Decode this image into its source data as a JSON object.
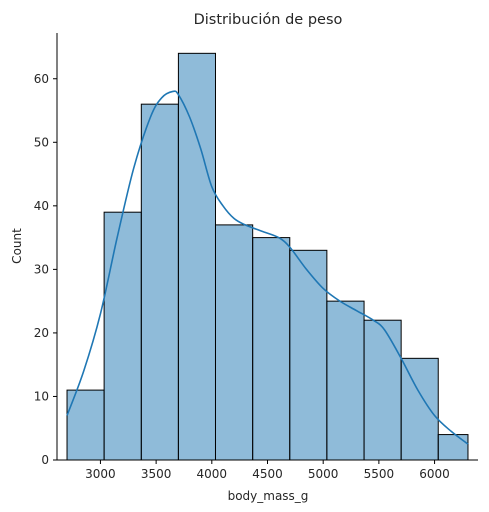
{
  "chart_data": {
    "type": "histogram",
    "title": "Distribución de peso",
    "xlabel": "body_mass_g",
    "ylabel": "Count",
    "xlim": [
      2610,
      6390
    ],
    "ylim": [
      0,
      67.2
    ],
    "x_ticks": [
      3000,
      3500,
      4000,
      4500,
      5000,
      5500,
      6000
    ],
    "y_ticks": [
      0,
      10,
      20,
      30,
      40,
      50,
      60
    ],
    "grid": false,
    "bins": [
      {
        "start": 2700,
        "end": 3033,
        "count": 11
      },
      {
        "start": 3033,
        "end": 3367,
        "count": 39
      },
      {
        "start": 3367,
        "end": 3700,
        "count": 56
      },
      {
        "start": 3700,
        "end": 4033,
        "count": 64
      },
      {
        "start": 4033,
        "end": 4367,
        "count": 37
      },
      {
        "start": 4367,
        "end": 4700,
        "count": 35
      },
      {
        "start": 4700,
        "end": 5033,
        "count": 33
      },
      {
        "start": 5033,
        "end": 5367,
        "count": 25
      },
      {
        "start": 5367,
        "end": 5700,
        "count": 22
      },
      {
        "start": 5700,
        "end": 6033,
        "count": 16
      },
      {
        "start": 6033,
        "end": 6300,
        "count": 4
      }
    ],
    "kde": {
      "x": [
        2700,
        2850,
        3000,
        3150,
        3300,
        3450,
        3550,
        3650,
        3700,
        3800,
        3900,
        4000,
        4100,
        4200,
        4300,
        4450,
        4600,
        4700,
        4850,
        5000,
        5150,
        5300,
        5450,
        5550,
        5700,
        5850,
        6000,
        6150,
        6300
      ],
      "y": [
        7,
        14,
        23,
        35,
        46,
        54,
        57,
        58,
        57.5,
        54,
        49,
        43,
        40,
        38,
        37,
        36,
        35,
        33.5,
        30,
        27,
        25,
        23.5,
        22,
        20.5,
        16,
        11,
        7,
        4.5,
        2.5
      ]
    },
    "colors": {
      "bar_fill": "#1f77b4",
      "bar_fill_opacity": 0.5,
      "bar_edge": "#000000",
      "kde_line": "#1f77b4"
    }
  }
}
